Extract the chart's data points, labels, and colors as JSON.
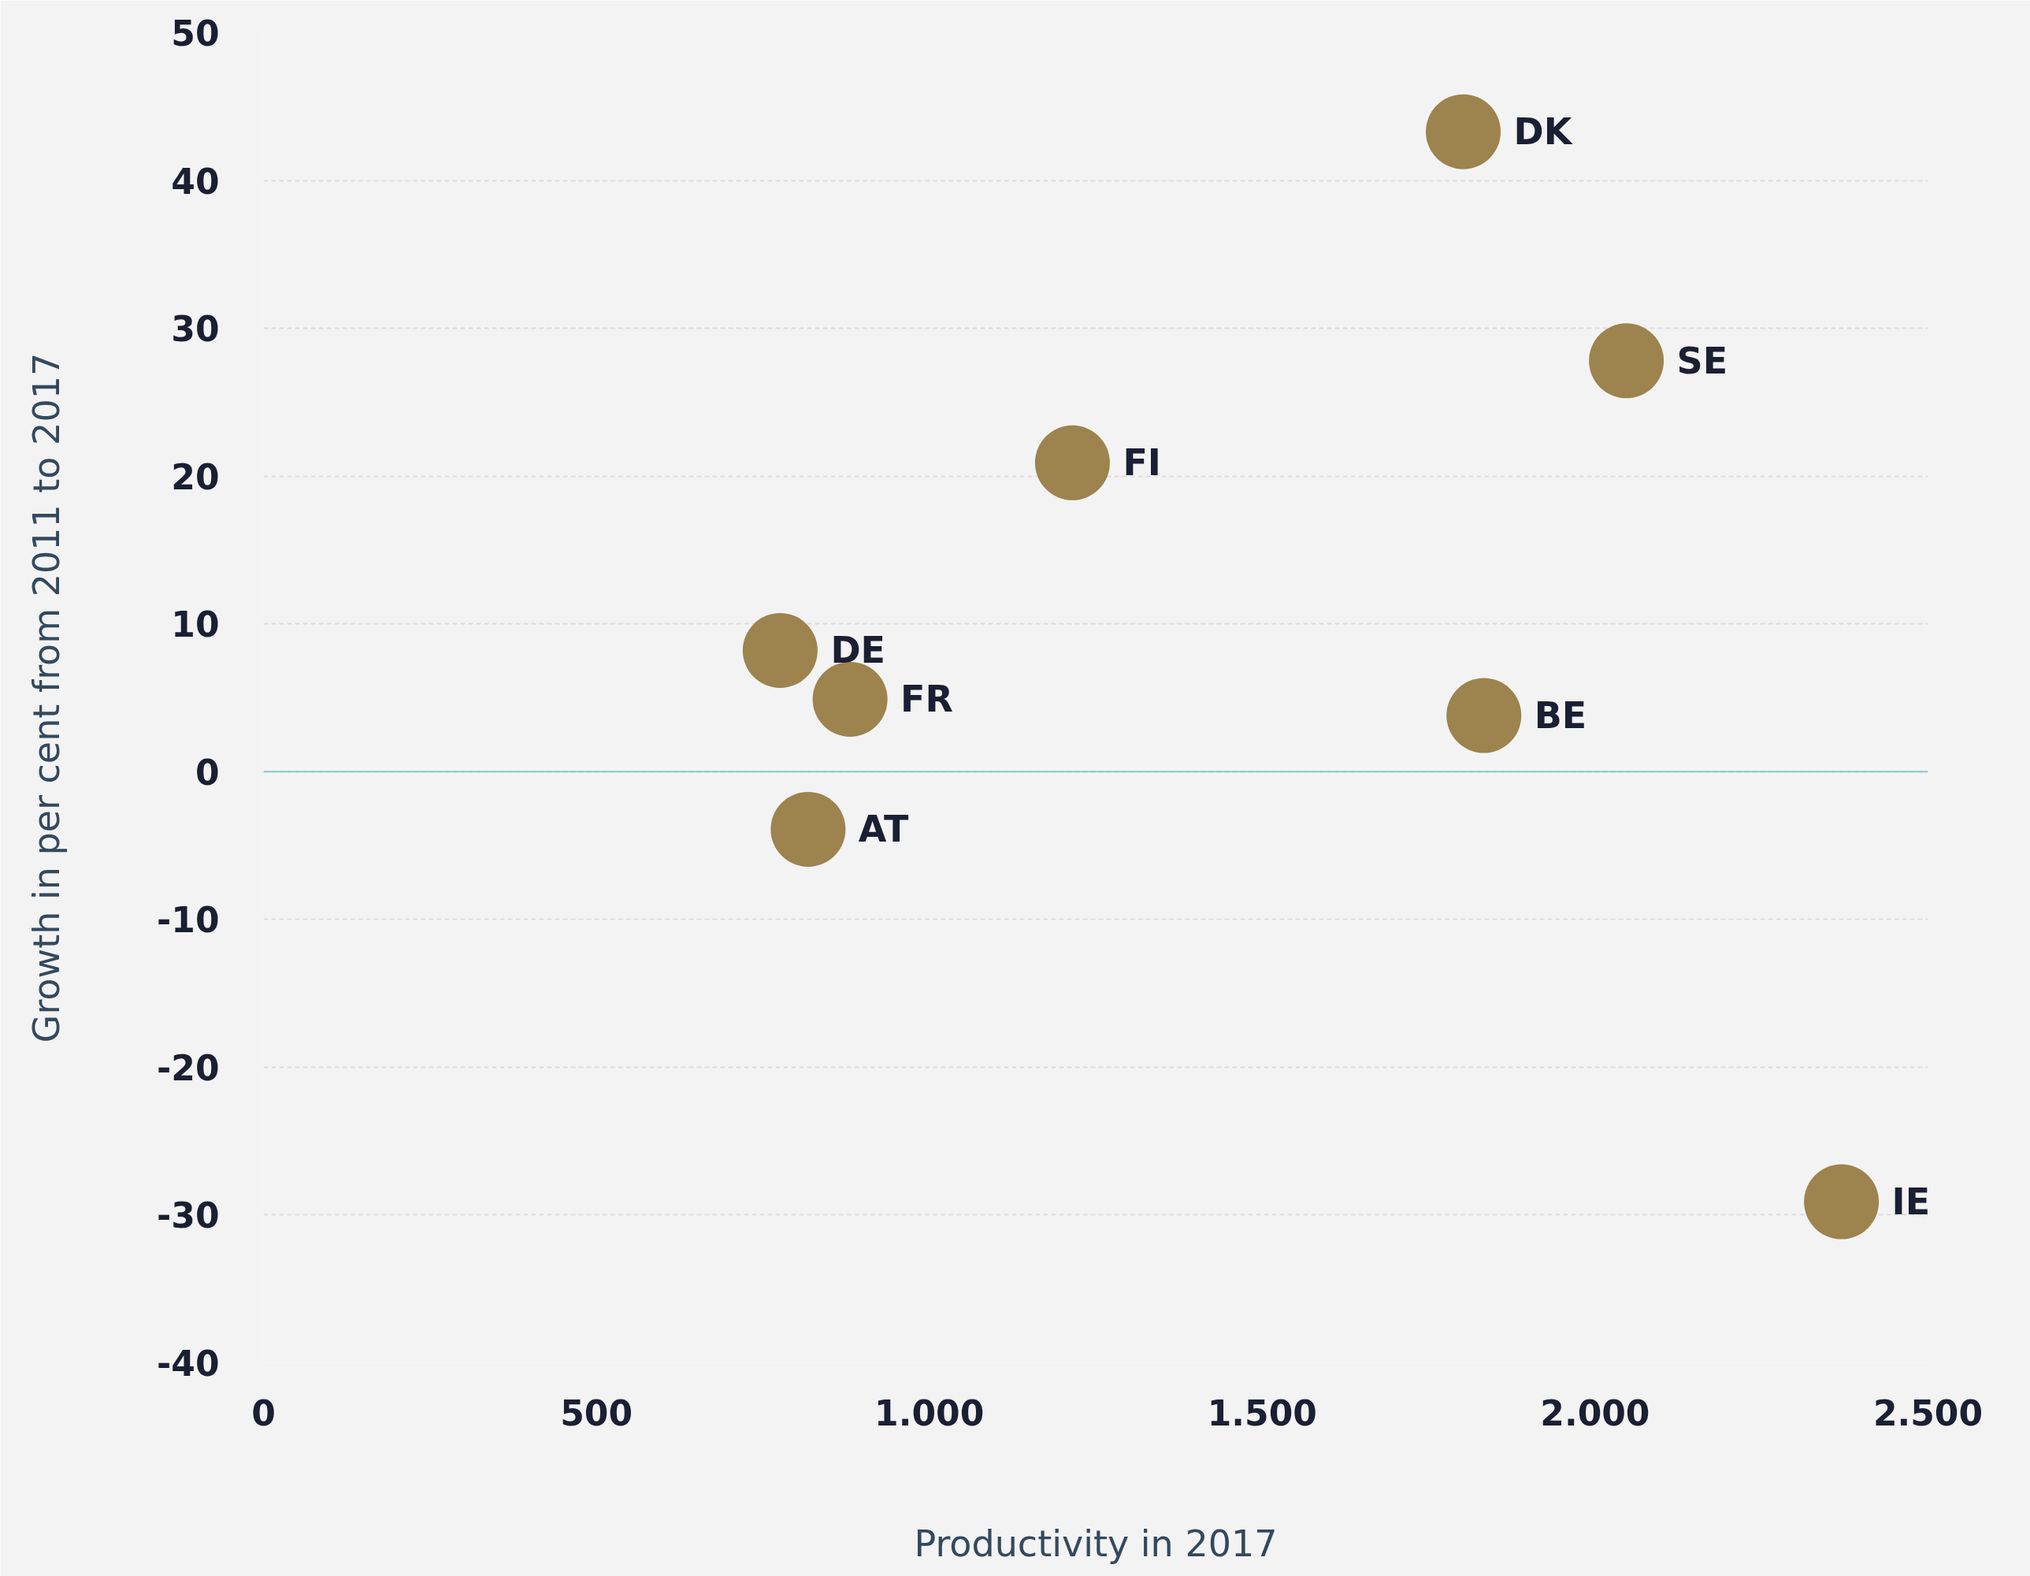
{
  "chart_data": {
    "type": "scatter",
    "xlabel": "Productivity in 2017",
    "ylabel": "Growth in per cent from 2011 to 2017",
    "series": [
      {
        "name": "DK",
        "color": "#9d834e",
        "x": [
          1802
        ],
        "values": [
          43.3
        ]
      },
      {
        "name": "SE",
        "color": "#9d834e",
        "x": [
          2047
        ],
        "values": [
          27.8
        ]
      },
      {
        "name": "FI",
        "color": "#9d834e",
        "x": [
          1215
        ],
        "values": [
          20.9
        ]
      },
      {
        "name": "DE",
        "color": "#9d834e",
        "x": [
          776
        ],
        "values": [
          8.2
        ]
      },
      {
        "name": "FR",
        "color": "#9d834e",
        "x": [
          881
        ],
        "values": [
          4.9
        ]
      },
      {
        "name": "BE",
        "color": "#9d834e",
        "x": [
          1833
        ],
        "values": [
          3.8
        ]
      },
      {
        "name": "AT",
        "color": "#9d834e",
        "x": [
          818
        ],
        "values": [
          -3.9
        ]
      },
      {
        "name": "IE",
        "color": "#9d834e",
        "x": [
          2370
        ],
        "values": [
          -29.1
        ]
      }
    ],
    "marker": "circle",
    "xlim": [
      0,
      2500
    ],
    "ylim": [
      -40,
      50
    ],
    "xticks": [
      0,
      500,
      {
        "value": 1000,
        "label": "1.000"
      },
      {
        "value": 1500,
        "label": "1.500"
      },
      {
        "value": 2000,
        "label": "2.000"
      },
      {
        "value": 2500,
        "label": "2.500"
      }
    ],
    "yticks": [
      -40,
      -30,
      -20,
      -10,
      0,
      10,
      20,
      30,
      40,
      50
    ],
    "grid": "y",
    "ref_lines": [
      {
        "axis": "y",
        "value": 0,
        "label": null,
        "color": "#7fcfc9"
      }
    ]
  }
}
